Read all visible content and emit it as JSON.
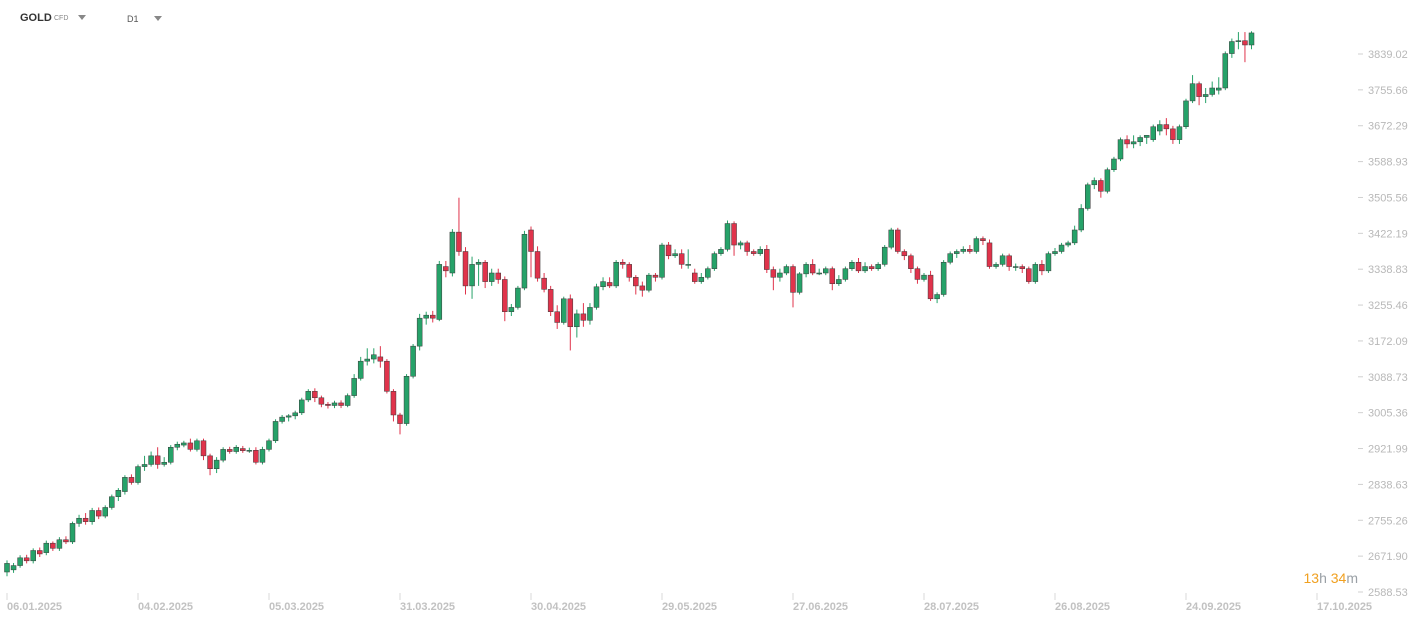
{
  "header": {
    "symbol": "GOLD",
    "symbol_type": "CFD",
    "timeframe": "D1"
  },
  "countdown": {
    "hours": "13",
    "h_unit": "h",
    "minutes": "34",
    "m_unit": "m"
  },
  "colors": {
    "up": "#26a269",
    "down": "#e0334b",
    "grid": "#e3e3e3",
    "axis_text": "#b8b8b8"
  },
  "chart_data": {
    "type": "candlestick",
    "instrument": "GOLD",
    "timeframe": "D1",
    "y_ticks": [
      "3839.02",
      "3755.66",
      "3672.29",
      "3588.93",
      "3505.56",
      "3422.19",
      "3338.83",
      "3255.46",
      "3172.09",
      "3088.73",
      "3005.36",
      "2921.99",
      "2838.63",
      "2755.26",
      "2671.90",
      "2588.53"
    ],
    "x_ticks": [
      "06.01.2025",
      "04.02.2025",
      "05.03.2025",
      "31.03.2025",
      "30.04.2025",
      "29.05.2025",
      "27.06.2025",
      "28.07.2025",
      "26.08.2025",
      "24.09.2025",
      "17.10.2025"
    ],
    "ylim": [
      2588.53,
      3839.02
    ],
    "candles": [
      [
        2635,
        2655,
        2625,
        2662
      ],
      [
        2640,
        2650,
        2633,
        2656
      ],
      [
        2650,
        2668,
        2645,
        2674
      ],
      [
        2668,
        2661,
        2655,
        2675
      ],
      [
        2661,
        2685,
        2655,
        2690
      ],
      [
        2685,
        2677,
        2670,
        2692
      ],
      [
        2680,
        2702,
        2674,
        2708
      ],
      [
        2702,
        2690,
        2684,
        2706
      ],
      [
        2690,
        2710,
        2684,
        2716
      ],
      [
        2710,
        2705,
        2700,
        2718
      ],
      [
        2705,
        2748,
        2700,
        2752
      ],
      [
        2748,
        2760,
        2740,
        2768
      ],
      [
        2760,
        2752,
        2745,
        2772
      ],
      [
        2752,
        2778,
        2745,
        2784
      ],
      [
        2778,
        2765,
        2758,
        2785
      ],
      [
        2765,
        2785,
        2760,
        2790
      ],
      [
        2785,
        2810,
        2780,
        2815
      ],
      [
        2810,
        2825,
        2800,
        2830
      ],
      [
        2822,
        2855,
        2815,
        2860
      ],
      [
        2855,
        2843,
        2838,
        2862
      ],
      [
        2843,
        2880,
        2838,
        2885
      ],
      [
        2880,
        2885,
        2870,
        2905
      ],
      [
        2885,
        2905,
        2880,
        2915
      ],
      [
        2905,
        2885,
        2875,
        2925
      ],
      [
        2885,
        2890,
        2880,
        2902
      ],
      [
        2890,
        2925,
        2885,
        2930
      ],
      [
        2925,
        2932,
        2918,
        2938
      ],
      [
        2930,
        2935,
        2925,
        2940
      ],
      [
        2935,
        2920,
        2915,
        2945
      ],
      [
        2920,
        2940,
        2915,
        2945
      ],
      [
        2940,
        2905,
        2895,
        2945
      ],
      [
        2905,
        2875,
        2860,
        2910
      ],
      [
        2875,
        2895,
        2865,
        2902
      ],
      [
        2895,
        2920,
        2890,
        2925
      ],
      [
        2920,
        2915,
        2910,
        2926
      ],
      [
        2915,
        2925,
        2910,
        2930
      ],
      [
        2922,
        2917,
        2912,
        2928
      ],
      [
        2917,
        2918,
        2912,
        2924
      ],
      [
        2918,
        2890,
        2885,
        2925
      ],
      [
        2890,
        2920,
        2885,
        2926
      ],
      [
        2920,
        2940,
        2915,
        2945
      ],
      [
        2940,
        2985,
        2935,
        2990
      ],
      [
        2985,
        2995,
        2980,
        3000
      ],
      [
        2995,
        2998,
        2985,
        3002
      ],
      [
        2998,
        3005,
        2990,
        3010
      ],
      [
        3005,
        3035,
        3000,
        3040
      ],
      [
        3035,
        3055,
        3030,
        3060
      ],
      [
        3055,
        3040,
        3030,
        3062
      ],
      [
        3040,
        3025,
        3018,
        3045
      ],
      [
        3025,
        3022,
        3015,
        3030
      ],
      [
        3022,
        3028,
        3016,
        3033
      ],
      [
        3028,
        3022,
        3016,
        3034
      ],
      [
        3022,
        3045,
        3018,
        3050
      ],
      [
        3045,
        3085,
        3040,
        3095
      ],
      [
        3085,
        3125,
        3080,
        3135
      ],
      [
        3125,
        3130,
        3115,
        3155
      ],
      [
        3130,
        3140,
        3120,
        3155
      ],
      [
        3135,
        3125,
        3110,
        3160
      ],
      [
        3125,
        3055,
        3050,
        3130
      ],
      [
        3055,
        3000,
        2985,
        3060
      ],
      [
        3000,
        2980,
        2955,
        3005
      ],
      [
        2980,
        3090,
        2975,
        3095
      ],
      [
        3090,
        3160,
        3085,
        3165
      ],
      [
        3160,
        3225,
        3150,
        3235
      ],
      [
        3225,
        3232,
        3210,
        3240
      ],
      [
        3232,
        3225,
        3215,
        3242
      ],
      [
        3222,
        3350,
        3218,
        3358
      ],
      [
        3345,
        3335,
        3320,
        3358
      ],
      [
        3330,
        3425,
        3322,
        3432
      ],
      [
        3425,
        3380,
        3370,
        3505
      ],
      [
        3380,
        3300,
        3280,
        3390
      ],
      [
        3300,
        3350,
        3270,
        3368
      ],
      [
        3350,
        3355,
        3300,
        3362
      ],
      [
        3355,
        3310,
        3295,
        3360
      ],
      [
        3310,
        3330,
        3300,
        3340
      ],
      [
        3330,
        3315,
        3305,
        3340
      ],
      [
        3315,
        3240,
        3218,
        3322
      ],
      [
        3240,
        3250,
        3230,
        3258
      ],
      [
        3250,
        3295,
        3245,
        3300
      ],
      [
        3295,
        3420,
        3290,
        3428
      ],
      [
        3430,
        3380,
        3320,
        3438
      ],
      [
        3380,
        3318,
        3310,
        3392
      ],
      [
        3318,
        3292,
        3285,
        3330
      ],
      [
        3292,
        3240,
        3230,
        3300
      ],
      [
        3240,
        3215,
        3200,
        3255
      ],
      [
        3215,
        3270,
        3210,
        3275
      ],
      [
        3270,
        3205,
        3150,
        3280
      ],
      [
        3205,
        3235,
        3180,
        3245
      ],
      [
        3235,
        3220,
        3205,
        3260
      ],
      [
        3220,
        3250,
        3210,
        3260
      ],
      [
        3250,
        3298,
        3245,
        3305
      ],
      [
        3298,
        3310,
        3290,
        3320
      ],
      [
        3308,
        3300,
        3295,
        3320
      ],
      [
        3300,
        3355,
        3295,
        3360
      ],
      [
        3355,
        3350,
        3340,
        3362
      ],
      [
        3350,
        3320,
        3310,
        3355
      ],
      [
        3320,
        3300,
        3280,
        3325
      ],
      [
        3300,
        3290,
        3275,
        3310
      ],
      [
        3290,
        3325,
        3285,
        3330
      ],
      [
        3325,
        3320,
        3310,
        3330
      ],
      [
        3320,
        3395,
        3315,
        3400
      ],
      [
        3395,
        3370,
        3362,
        3402
      ],
      [
        3370,
        3375,
        3365,
        3385
      ],
      [
        3375,
        3350,
        3340,
        3385
      ],
      [
        3350,
        3350,
        3340,
        3385
      ],
      [
        3330,
        3310,
        3305,
        3340
      ],
      [
        3310,
        3320,
        3305,
        3330
      ],
      [
        3320,
        3340,
        3315,
        3345
      ],
      [
        3340,
        3375,
        3335,
        3380
      ],
      [
        3375,
        3385,
        3370,
        3390
      ],
      [
        3385,
        3445,
        3380,
        3452
      ],
      [
        3445,
        3395,
        3370,
        3450
      ],
      [
        3395,
        3400,
        3385,
        3405
      ],
      [
        3400,
        3380,
        3370,
        3405
      ],
      [
        3380,
        3375,
        3370,
        3385
      ],
      [
        3375,
        3385,
        3370,
        3392
      ],
      [
        3385,
        3338,
        3330,
        3395
      ],
      [
        3338,
        3320,
        3290,
        3345
      ],
      [
        3320,
        3330,
        3310,
        3340
      ],
      [
        3330,
        3345,
        3325,
        3350
      ],
      [
        3345,
        3285,
        3250,
        3350
      ],
      [
        3285,
        3328,
        3280,
        3332
      ],
      [
        3328,
        3350,
        3320,
        3355
      ],
      [
        3350,
        3330,
        3325,
        3362
      ],
      [
        3330,
        3330,
        3325,
        3340
      ],
      [
        3330,
        3340,
        3325,
        3345
      ],
      [
        3340,
        3305,
        3290,
        3345
      ],
      [
        3305,
        3315,
        3300,
        3325
      ],
      [
        3315,
        3340,
        3310,
        3345
      ],
      [
        3340,
        3355,
        3335,
        3360
      ],
      [
        3355,
        3335,
        3330,
        3365
      ],
      [
        3335,
        3345,
        3330,
        3355
      ],
      [
        3345,
        3340,
        3335,
        3350
      ],
      [
        3340,
        3350,
        3335,
        3355
      ],
      [
        3350,
        3390,
        3345,
        3395
      ],
      [
        3390,
        3430,
        3385,
        3435
      ],
      [
        3430,
        3380,
        3375,
        3435
      ],
      [
        3380,
        3370,
        3360,
        3385
      ],
      [
        3370,
        3340,
        3330,
        3375
      ],
      [
        3340,
        3315,
        3305,
        3345
      ],
      [
        3315,
        3325,
        3310,
        3330
      ],
      [
        3325,
        3270,
        3265,
        3335
      ],
      [
        3270,
        3280,
        3260,
        3285
      ],
      [
        3280,
        3355,
        3275,
        3360
      ],
      [
        3355,
        3375,
        3350,
        3380
      ],
      [
        3375,
        3380,
        3365,
        3385
      ],
      [
        3380,
        3385,
        3375,
        3392
      ],
      [
        3385,
        3380,
        3375,
        3395
      ],
      [
        3380,
        3410,
        3375,
        3415
      ],
      [
        3410,
        3405,
        3395,
        3415
      ],
      [
        3400,
        3345,
        3340,
        3408
      ],
      [
        3345,
        3350,
        3340,
        3355
      ],
      [
        3350,
        3370,
        3345,
        3375
      ],
      [
        3370,
        3345,
        3335,
        3375
      ],
      [
        3345,
        3345,
        3335,
        3352
      ],
      [
        3345,
        3340,
        3330,
        3350
      ],
      [
        3340,
        3310,
        3305,
        3345
      ],
      [
        3310,
        3350,
        3305,
        3355
      ],
      [
        3350,
        3335,
        3325,
        3360
      ],
      [
        3335,
        3375,
        3330,
        3380
      ],
      [
        3375,
        3380,
        3370,
        3388
      ],
      [
        3380,
        3395,
        3375,
        3400
      ],
      [
        3395,
        3400,
        3390,
        3405
      ],
      [
        3400,
        3430,
        3395,
        3440
      ],
      [
        3430,
        3480,
        3425,
        3490
      ],
      [
        3480,
        3535,
        3475,
        3540
      ],
      [
        3535,
        3545,
        3525,
        3552
      ],
      [
        3545,
        3520,
        3505,
        3550
      ],
      [
        3520,
        3570,
        3515,
        3575
      ],
      [
        3570,
        3595,
        3565,
        3600
      ],
      [
        3595,
        3640,
        3590,
        3645
      ],
      [
        3640,
        3630,
        3620,
        3650
      ],
      [
        3630,
        3635,
        3620,
        3650
      ],
      [
        3635,
        3645,
        3625,
        3650
      ],
      [
        3645,
        3650,
        3630,
        3650
      ],
      [
        3640,
        3670,
        3635,
        3675
      ],
      [
        3660,
        3675,
        3650,
        3685
      ],
      [
        3675,
        3665,
        3650,
        3690
      ],
      [
        3665,
        3640,
        3630,
        3672
      ],
      [
        3640,
        3670,
        3630,
        3675
      ],
      [
        3670,
        3730,
        3665,
        3735
      ],
      [
        3730,
        3770,
        3725,
        3790
      ],
      [
        3770,
        3740,
        3720,
        3775
      ],
      [
        3740,
        3745,
        3725,
        3760
      ],
      [
        3745,
        3760,
        3740,
        3775
      ],
      [
        3755,
        3760,
        3745,
        3785
      ],
      [
        3760,
        3840,
        3755,
        3845
      ],
      [
        3840,
        3868,
        3830,
        3875
      ],
      [
        3868,
        3870,
        3850,
        3890
      ],
      [
        3870,
        3860,
        3820,
        3890
      ],
      [
        3860,
        3888,
        3850,
        3892
      ]
    ]
  }
}
